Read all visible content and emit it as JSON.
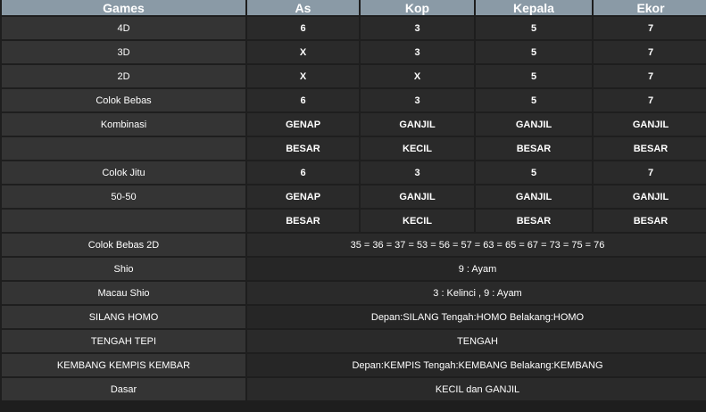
{
  "headers": [
    "Games",
    "As",
    "Kop",
    "Kepala",
    "Ekor"
  ],
  "grid_rows": [
    {
      "label": "4D",
      "as": "6",
      "kop": "3",
      "kepala": "5",
      "ekor": "7"
    },
    {
      "label": "3D",
      "as": "X",
      "kop": "3",
      "kepala": "5",
      "ekor": "7"
    },
    {
      "label": "2D",
      "as": "X",
      "kop": "X",
      "kepala": "5",
      "ekor": "7"
    },
    {
      "label": "Colok Bebas",
      "as": "6",
      "kop": "3",
      "kepala": "5",
      "ekor": "7"
    },
    {
      "label": "Kombinasi",
      "as": "GENAP",
      "kop": "GANJIL",
      "kepala": "GANJIL",
      "ekor": "GANJIL"
    },
    {
      "label": "",
      "as": "BESAR",
      "kop": "KECIL",
      "kepala": "BESAR",
      "ekor": "BESAR"
    },
    {
      "label": "Colok Jitu",
      "as": "6",
      "kop": "3",
      "kepala": "5",
      "ekor": "7"
    },
    {
      "label": "50-50",
      "as": "GENAP",
      "kop": "GANJIL",
      "kepala": "GANJIL",
      "ekor": "GANJIL"
    },
    {
      "label": "",
      "as": "BESAR",
      "kop": "KECIL",
      "kepala": "BESAR",
      "ekor": "BESAR"
    }
  ],
  "wide_rows": [
    {
      "label": "Colok Bebas 2D",
      "value": "35 = 36 = 37 = 53 = 56 = 57 = 63 = 65 = 67 = 73 = 75 = 76"
    },
    {
      "label": "Shio",
      "value": "9 : Ayam"
    },
    {
      "label": "Macau Shio",
      "value": "3 : Kelinci , 9 : Ayam"
    },
    {
      "label": "SILANG HOMO",
      "value": "Depan:SILANG Tengah:HOMO Belakang:HOMO"
    },
    {
      "label": "TENGAH TEPI",
      "value": "TENGAH"
    },
    {
      "label": "KEMBANG KEMPIS KEMBAR",
      "value": "Depan:KEMPIS Tengah:KEMBANG Belakang:KEMBANG"
    },
    {
      "label": "Dasar",
      "value": "KECIL dan GANJIL"
    }
  ]
}
